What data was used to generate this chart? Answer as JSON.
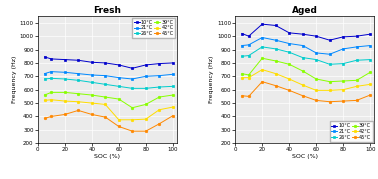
{
  "soc": [
    5,
    10,
    20,
    30,
    40,
    50,
    60,
    70,
    80,
    90,
    100
  ],
  "fresh": {
    "10C": [
      845,
      830,
      825,
      820,
      805,
      800,
      785,
      760,
      785,
      795,
      800
    ],
    "21C": [
      720,
      735,
      730,
      720,
      710,
      705,
      690,
      680,
      700,
      705,
      715
    ],
    "26C": [
      680,
      685,
      680,
      670,
      655,
      640,
      625,
      610,
      610,
      620,
      625
    ],
    "39C": [
      560,
      580,
      580,
      570,
      560,
      545,
      530,
      465,
      490,
      545,
      560
    ],
    "42C": [
      520,
      525,
      515,
      510,
      500,
      490,
      375,
      375,
      380,
      450,
      470
    ],
    "45C": [
      385,
      400,
      415,
      445,
      415,
      395,
      325,
      290,
      290,
      345,
      405
    ]
  },
  "aged": {
    "10C": [
      1020,
      1000,
      1090,
      1080,
      1025,
      1015,
      1000,
      970,
      995,
      1000,
      1015
    ],
    "21C": [
      930,
      935,
      990,
      970,
      945,
      930,
      875,
      865,
      905,
      920,
      930
    ],
    "26C": [
      850,
      855,
      920,
      905,
      880,
      840,
      825,
      790,
      795,
      820,
      825
    ],
    "39C": [
      720,
      710,
      835,
      815,
      790,
      740,
      680,
      660,
      665,
      670,
      730
    ],
    "42C": [
      690,
      690,
      750,
      720,
      680,
      635,
      595,
      595,
      600,
      625,
      640
    ],
    "45C": [
      555,
      550,
      660,
      630,
      595,
      555,
      520,
      510,
      515,
      520,
      560
    ]
  },
  "labels": [
    "10°C",
    "21°C",
    "26°C",
    "39°C",
    "42°C",
    "45°C"
  ],
  "colors": {
    "10C": "#0000cc",
    "21C": "#0088ff",
    "26C": "#00cccc",
    "39C": "#88ff00",
    "42C": "#ffdd00",
    "45C": "#ff8800"
  },
  "markers": {
    "10C": "s",
    "21C": "s",
    "26C": "s",
    "39C": "o",
    "42C": "o",
    "45C": "o"
  },
  "ylim": [
    200,
    1150
  ],
  "yticks": [
    200,
    300,
    400,
    500,
    600,
    700,
    800,
    900,
    1000,
    1100
  ],
  "xticks": [
    0,
    20,
    40,
    60,
    80,
    100
  ],
  "xlabel": "SOC (%)",
  "ylabel": "Frequency (Hz)",
  "title_fresh": "Fresh",
  "title_aged": "Aged"
}
